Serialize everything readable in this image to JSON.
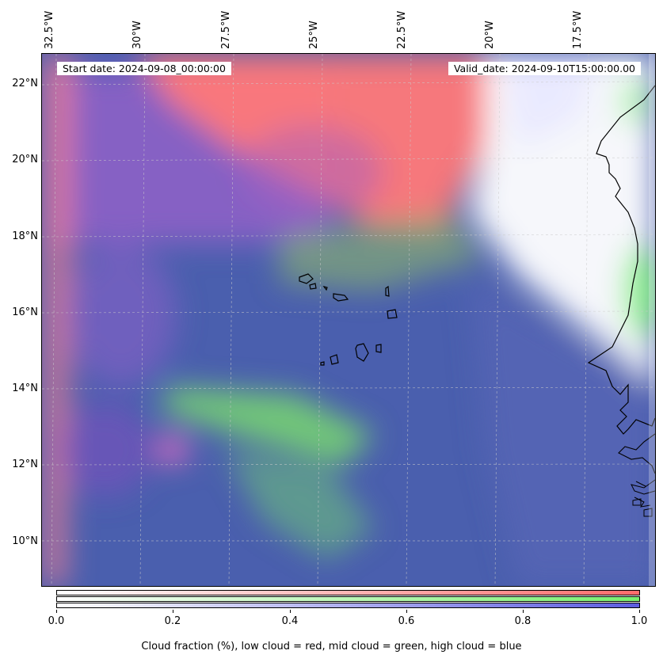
{
  "header": {
    "start_date": "Start date: 2024-09-08_00:00:00",
    "valid_date": "Valid_date: 2024-09-10T15:00:00.00"
  },
  "axes": {
    "lon_labels": [
      "32.5°W",
      "30°W",
      "27.5°W",
      "25°W",
      "22.5°W",
      "20°W",
      "17.5°W"
    ],
    "lat_labels": [
      "22°N",
      "20°N",
      "18°N",
      "16°N",
      "14°N",
      "12°N",
      "10°N"
    ]
  },
  "colorbar": {
    "ticks": [
      "0.0",
      "0.2",
      "0.4",
      "0.6",
      "0.8",
      "1.0"
    ],
    "label": "Cloud fraction (%), low cloud = red, mid cloud = green, high cloud = blue",
    "colors": {
      "low": "#ff6b6b",
      "mid": "#78f06e",
      "high": "#5c5ce0"
    }
  },
  "colors": {
    "ocean_base": "#4a5fae",
    "low_cloud": "#ff7a7a",
    "mid_cloud": "#7ee07a",
    "high_cloud": "#5a5acc",
    "clear_land": "#ffffff",
    "coastline": "#000000"
  }
}
